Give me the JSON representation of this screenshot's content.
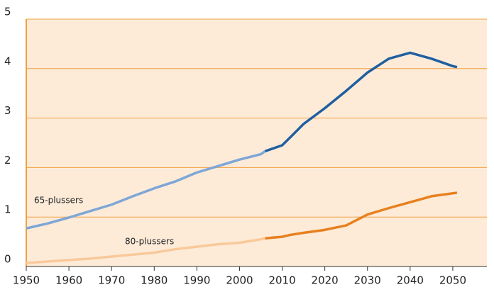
{
  "chart_data": {
    "type": "line",
    "x": [
      1950,
      1955,
      1960,
      1965,
      1970,
      1975,
      1980,
      1985,
      1990,
      1995,
      2000,
      2005,
      2006,
      2010,
      2012,
      2015,
      2020,
      2025,
      2030,
      2035,
      2040,
      2045,
      2050,
      2051
    ],
    "projection_from": 2006,
    "series": [
      {
        "name": "65-plussers",
        "color": "#7ea6d6",
        "projection_color": "#1f5fa0",
        "values": [
          0.77,
          0.87,
          0.99,
          1.12,
          1.25,
          1.42,
          1.58,
          1.72,
          1.9,
          2.03,
          2.16,
          2.27,
          2.33,
          2.45,
          2.62,
          2.88,
          3.2,
          3.55,
          3.92,
          4.2,
          4.32,
          4.2,
          4.05,
          4.03
        ]
      },
      {
        "name": "80-plussers",
        "color": "#f9c99a",
        "projection_color": "#e8801e",
        "values": [
          0.07,
          0.1,
          0.13,
          0.16,
          0.2,
          0.24,
          0.28,
          0.35,
          0.4,
          0.45,
          0.48,
          0.55,
          0.57,
          0.6,
          0.64,
          0.68,
          0.74,
          0.83,
          1.05,
          1.18,
          1.3,
          1.42,
          1.48,
          1.49
        ]
      }
    ],
    "xlim": [
      1950,
      2058
    ],
    "xticks": [
      1950,
      1960,
      1970,
      1980,
      1990,
      2000,
      2010,
      2020,
      2030,
      2040,
      2050
    ],
    "ylim": [
      0,
      5
    ],
    "yticks": [
      0,
      1,
      2,
      3,
      4,
      5
    ],
    "grid": true,
    "background": "#fdebd8",
    "grid_color": "#f0a040"
  }
}
